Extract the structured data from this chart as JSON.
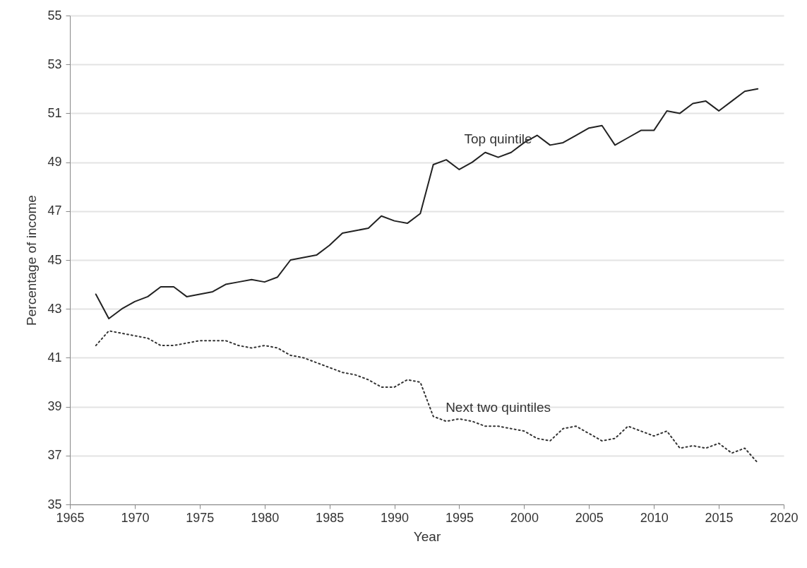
{
  "chart_data": {
    "type": "line",
    "xlabel": "Year",
    "ylabel": "Percentage of income",
    "x": [
      1967,
      1968,
      1969,
      1970,
      1971,
      1972,
      1973,
      1974,
      1975,
      1976,
      1977,
      1978,
      1979,
      1980,
      1981,
      1982,
      1983,
      1984,
      1985,
      1986,
      1987,
      1988,
      1989,
      1990,
      1991,
      1992,
      1993,
      1994,
      1995,
      1996,
      1997,
      1998,
      1999,
      2000,
      2001,
      2002,
      2003,
      2004,
      2005,
      2006,
      2007,
      2008,
      2009,
      2010,
      2011,
      2012,
      2013,
      2014,
      2015,
      2016,
      2017,
      2018
    ],
    "series": [
      {
        "name": "Top quintile",
        "color": "#222222",
        "line_style": "solid",
        "values": [
          43.6,
          42.6,
          43.0,
          43.3,
          43.5,
          43.9,
          43.9,
          43.5,
          43.6,
          43.7,
          44.0,
          44.1,
          44.2,
          44.1,
          44.3,
          45.0,
          45.1,
          45.2,
          45.6,
          46.1,
          46.2,
          46.3,
          46.8,
          46.6,
          46.5,
          46.9,
          48.9,
          49.1,
          48.7,
          49.0,
          49.4,
          49.2,
          49.4,
          49.8,
          50.1,
          49.7,
          49.8,
          50.1,
          50.4,
          50.5,
          49.7,
          50.0,
          50.3,
          50.3,
          51.1,
          51.0,
          51.4,
          51.5,
          51.1,
          51.5,
          51.9,
          52.0
        ]
      },
      {
        "name": "Next two quintiles",
        "color": "#333333",
        "line_style": "dotted",
        "values": [
          41.5,
          42.1,
          42.0,
          41.9,
          41.8,
          41.5,
          41.5,
          41.6,
          41.7,
          41.7,
          41.7,
          41.5,
          41.4,
          41.5,
          41.4,
          41.1,
          41.0,
          40.8,
          40.6,
          40.4,
          40.3,
          40.1,
          39.8,
          39.8,
          40.1,
          40.0,
          38.6,
          38.4,
          38.5,
          38.4,
          38.2,
          38.2,
          38.1,
          38.0,
          37.7,
          37.6,
          38.1,
          38.2,
          37.9,
          37.6,
          37.7,
          38.2,
          38.0,
          37.8,
          38.0,
          37.3,
          37.4,
          37.3,
          37.5,
          37.1,
          37.3,
          36.7
        ]
      }
    ],
    "xlim": [
      1965,
      2020
    ],
    "xticks": [
      1965,
      1970,
      1975,
      1980,
      1985,
      1990,
      1995,
      2000,
      2005,
      2010,
      2015,
      2020
    ],
    "ylim": [
      35,
      55
    ],
    "yticks": [
      35,
      37,
      39,
      41,
      43,
      45,
      47,
      49,
      51,
      53,
      55
    ],
    "grid": "y",
    "legend": false,
    "marker": "none"
  }
}
